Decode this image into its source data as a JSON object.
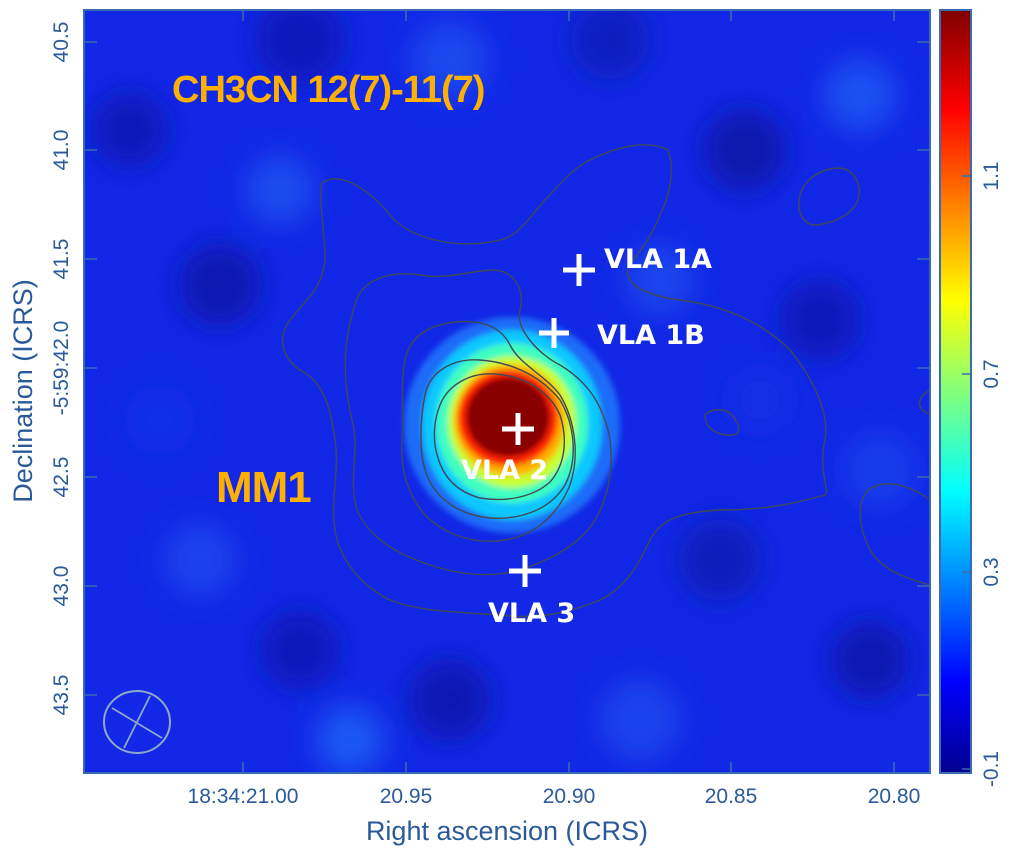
{
  "image": {
    "title": "CH3CN 12(7)-11(7)",
    "region_label": "MM1",
    "x_axis_label": "Right ascension (ICRS)",
    "y_axis_label": "Declination (ICRS)",
    "x_tick_labels": [
      "18:34:21.00",
      "20.95",
      "20.90",
      "20.85",
      "20.80"
    ],
    "y_tick_labels": [
      "40.5",
      "41.0",
      "41.5",
      "-5:59:42.0",
      "42.5",
      "43.0",
      "43.5"
    ],
    "colorbar_tick_labels": [
      "1.1",
      "0.7",
      "0.3",
      "-0.1"
    ],
    "colormap": "jet",
    "title_color": "#ffb000",
    "axis_color": "#2a5a9a"
  },
  "sources": [
    {
      "name": "VLA 1A"
    },
    {
      "name": "VLA 1B"
    },
    {
      "name": "VLA 2"
    },
    {
      "name": "VLA 3"
    }
  ]
}
